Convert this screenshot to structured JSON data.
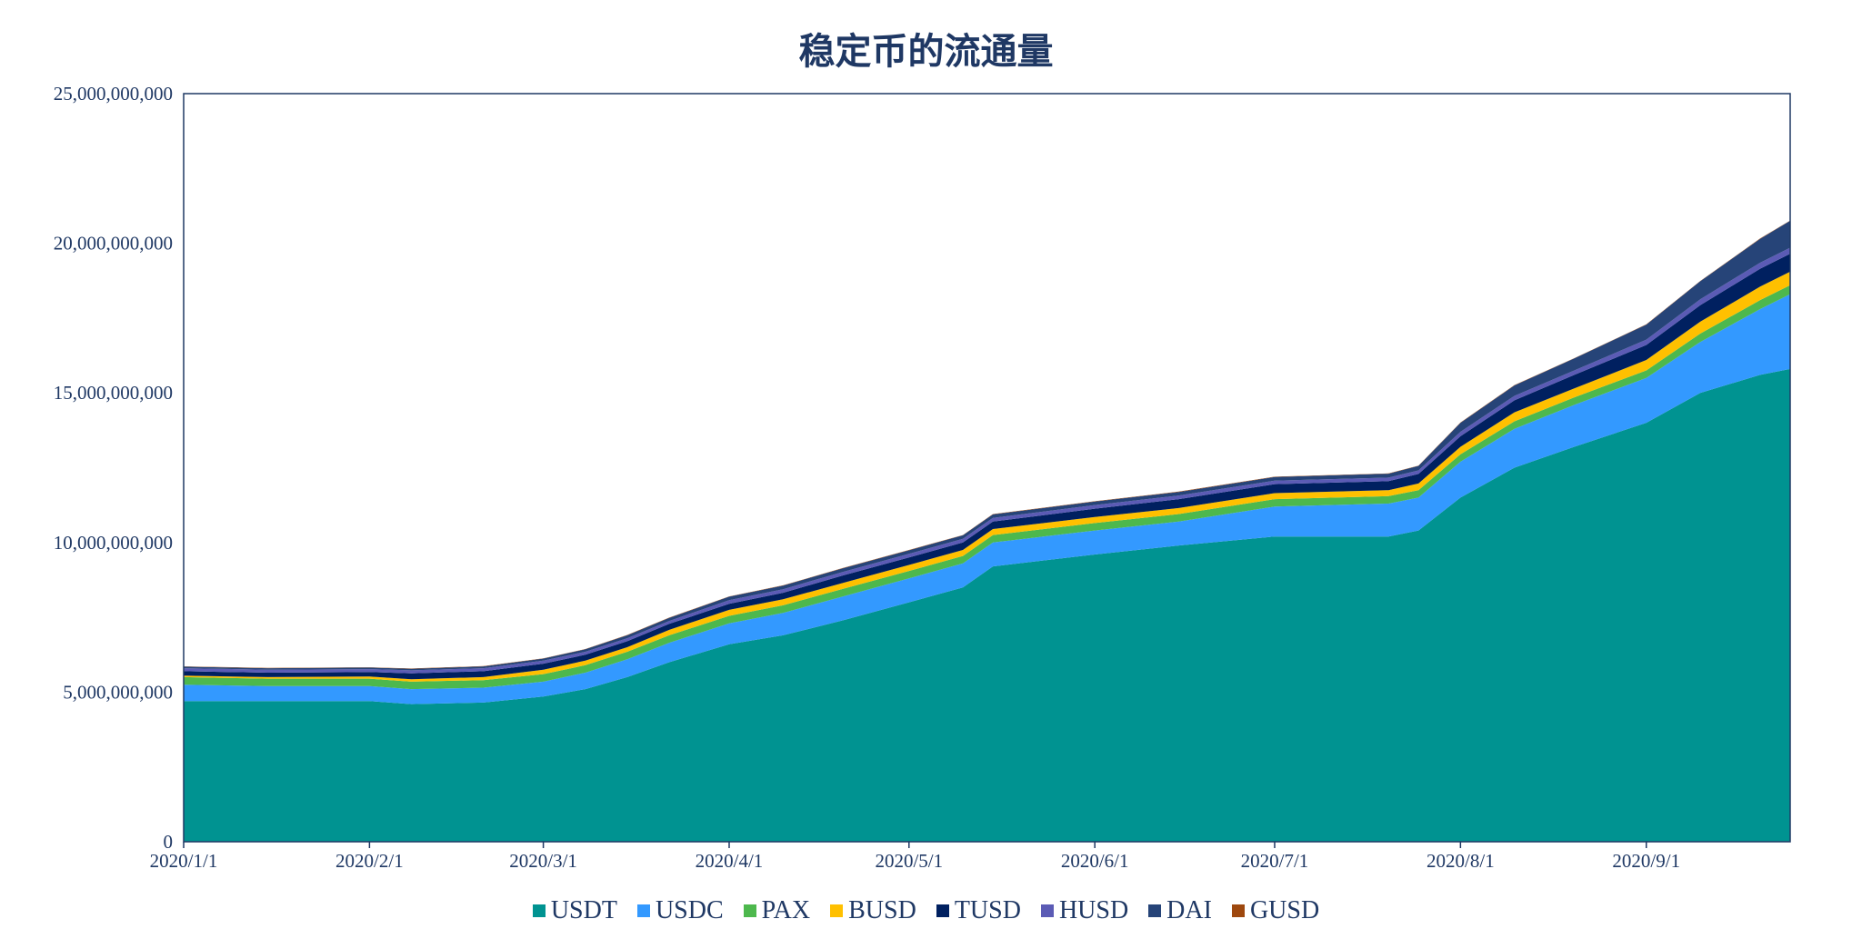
{
  "chart_data": {
    "type": "area",
    "stacked": true,
    "title": "稳定币的流通量",
    "xlabel": "",
    "ylabel": "",
    "ylim": [
      0,
      25000000000
    ],
    "yticks": [
      "0",
      "5,000,000,000",
      "10,000,000,000",
      "15,000,000,000",
      "20,000,000,000",
      "25,000,000,000"
    ],
    "xticks": [
      "2020/1/1",
      "2020/2/1",
      "2020/3/1",
      "2020/4/1",
      "2020/5/1",
      "2020/6/1",
      "2020/7/1",
      "2020/8/1",
      "2020/9/1"
    ],
    "xlim": [
      "2020-01-01",
      "2020-09-25"
    ],
    "legend_position": "bottom",
    "grid": false,
    "x": [
      "2020-01-01",
      "2020-01-15",
      "2020-02-01",
      "2020-02-08",
      "2020-02-20",
      "2020-03-01",
      "2020-03-08",
      "2020-03-15",
      "2020-03-22",
      "2020-04-01",
      "2020-04-10",
      "2020-04-20",
      "2020-05-01",
      "2020-05-10",
      "2020-05-15",
      "2020-06-01",
      "2020-06-15",
      "2020-07-01",
      "2020-07-20",
      "2020-07-25",
      "2020-08-01",
      "2020-08-10",
      "2020-08-20",
      "2020-09-01",
      "2020-09-10",
      "2020-09-20",
      "2020-09-25"
    ],
    "series": [
      {
        "name": "USDT",
        "color": "#009391",
        "values": [
          4700000000.0,
          4700000000.0,
          4700000000.0,
          4600000000.0,
          4650000000.0,
          4850000000.0,
          5100000000.0,
          5500000000.0,
          6000000000.0,
          6600000000.0,
          6900000000.0,
          7400000000.0,
          8000000000.0,
          8500000000.0,
          9200000000.0,
          9600000000.0,
          9900000000.0,
          10200000000.0,
          10200000000.0,
          10400000000.0,
          11500000000.0,
          12500000000.0,
          13200000000.0,
          14000000000.0,
          15000000000.0,
          15600000000.0,
          15800000000.0
        ]
      },
      {
        "name": "USDC",
        "color": "#3399ff",
        "values": [
          550000000.0,
          500000000.0,
          500000000.0,
          500000000.0,
          500000000.0,
          500000000.0,
          550000000.0,
          600000000.0,
          650000000.0,
          700000000.0,
          750000000.0,
          800000000.0,
          800000000.0,
          800000000.0,
          800000000.0,
          800000000.0,
          800000000.0,
          1000000000.0,
          1100000000.0,
          1100000000.0,
          1200000000.0,
          1300000000.0,
          1400000000.0,
          1500000000.0,
          1700000000.0,
          2200000000.0,
          2500000000.0
        ]
      },
      {
        "name": "PAX",
        "color": "#4db84d",
        "values": [
          250000000.0,
          250000000.0,
          250000000.0,
          250000000.0,
          250000000.0,
          250000000.0,
          250000000.0,
          250000000.0,
          250000000.0,
          250000000.0,
          250000000.0,
          250000000.0,
          250000000.0,
          250000000.0,
          250000000.0,
          250000000.0,
          250000000.0,
          250000000.0,
          250000000.0,
          250000000.0,
          250000000.0,
          250000000.0,
          250000000.0,
          250000000.0,
          280000000.0,
          300000000.0,
          300000000.0
        ]
      },
      {
        "name": "BUSD",
        "color": "#ffc000",
        "values": [
          50000000.0,
          50000000.0,
          70000000.0,
          80000000.0,
          100000000.0,
          150000000.0,
          150000000.0,
          150000000.0,
          180000000.0,
          200000000.0,
          200000000.0,
          200000000.0,
          200000000.0,
          200000000.0,
          200000000.0,
          200000000.0,
          200000000.0,
          200000000.0,
          200000000.0,
          220000000.0,
          250000000.0,
          300000000.0,
          300000000.0,
          350000000.0,
          400000000.0,
          450000000.0,
          450000000.0
        ]
      },
      {
        "name": "TUSD",
        "color": "#002060",
        "values": [
          150000000.0,
          150000000.0,
          150000000.0,
          200000000.0,
          200000000.0,
          200000000.0,
          200000000.0,
          200000000.0,
          200000000.0,
          200000000.0,
          220000000.0,
          250000000.0,
          250000000.0,
          250000000.0,
          250000000.0,
          280000000.0,
          300000000.0,
          300000000.0,
          300000000.0,
          320000000.0,
          350000000.0,
          400000000.0,
          450000000.0,
          500000000.0,
          550000000.0,
          600000000.0,
          600000000.0
        ]
      },
      {
        "name": "HUSD",
        "color": "#5b5bb5",
        "values": [
          100000000.0,
          100000000.0,
          100000000.0,
          100000000.0,
          100000000.0,
          100000000.0,
          100000000.0,
          100000000.0,
          100000000.0,
          120000000.0,
          120000000.0,
          120000000.0,
          120000000.0,
          120000000.0,
          120000000.0,
          120000000.0,
          120000000.0,
          120000000.0,
          120000000.0,
          120000000.0,
          150000000.0,
          150000000.0,
          150000000.0,
          180000000.0,
          200000000.0,
          200000000.0,
          200000000.0
        ]
      },
      {
        "name": "DAI",
        "color": "#264478",
        "values": [
          50000000.0,
          50000000.0,
          50000000.0,
          50000000.0,
          60000000.0,
          70000000.0,
          80000000.0,
          100000000.0,
          100000000.0,
          120000000.0,
          120000000.0,
          120000000.0,
          120000000.0,
          120000000.0,
          120000000.0,
          120000000.0,
          120000000.0,
          120000000.0,
          130000000.0,
          150000000.0,
          300000000.0,
          350000000.0,
          400000000.0,
          500000000.0,
          600000000.0,
          800000000.0,
          900000000.0
        ]
      },
      {
        "name": "GUSD",
        "color": "#9e480e",
        "values": [
          10000000.0,
          10000000.0,
          10000000.0,
          10000000.0,
          10000000.0,
          10000000.0,
          10000000.0,
          10000000.0,
          10000000.0,
          10000000.0,
          10000000.0,
          10000000.0,
          10000000.0,
          10000000.0,
          10000000.0,
          10000000.0,
          10000000.0,
          10000000.0,
          10000000.0,
          10000000.0,
          10000000.0,
          10000000.0,
          10000000.0,
          10000000.0,
          10000000.0,
          10000000.0,
          10000000.0
        ]
      }
    ]
  }
}
